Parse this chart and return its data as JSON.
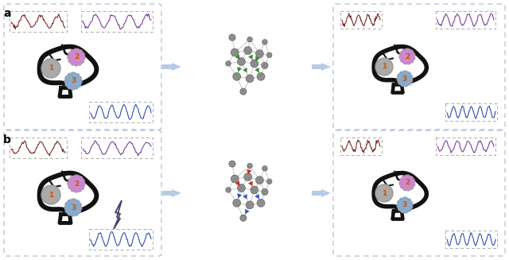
{
  "fig_width": 6.4,
  "fig_height": 3.27,
  "background": "#ffffff",
  "panel_border_color": "#aab8d8",
  "arrow_color": "#a8c4e0",
  "edge_color": "#c0c0c0",
  "green_triangle_color": "#2d8c2d",
  "red_triangle_color": "#cc2222",
  "blue_triangle_color": "#3355bb",
  "node1_color": "#aaaaaa",
  "node2_color": "#cc88cc",
  "node3_color": "#88aacc",
  "eeg1_color": "#7a2020",
  "eeg2_color": "#773399",
  "eeg3_color": "#2244aa",
  "brain_color": "#111111",
  "node_net_color": "#808080",
  "node_net_edge": "#555555"
}
